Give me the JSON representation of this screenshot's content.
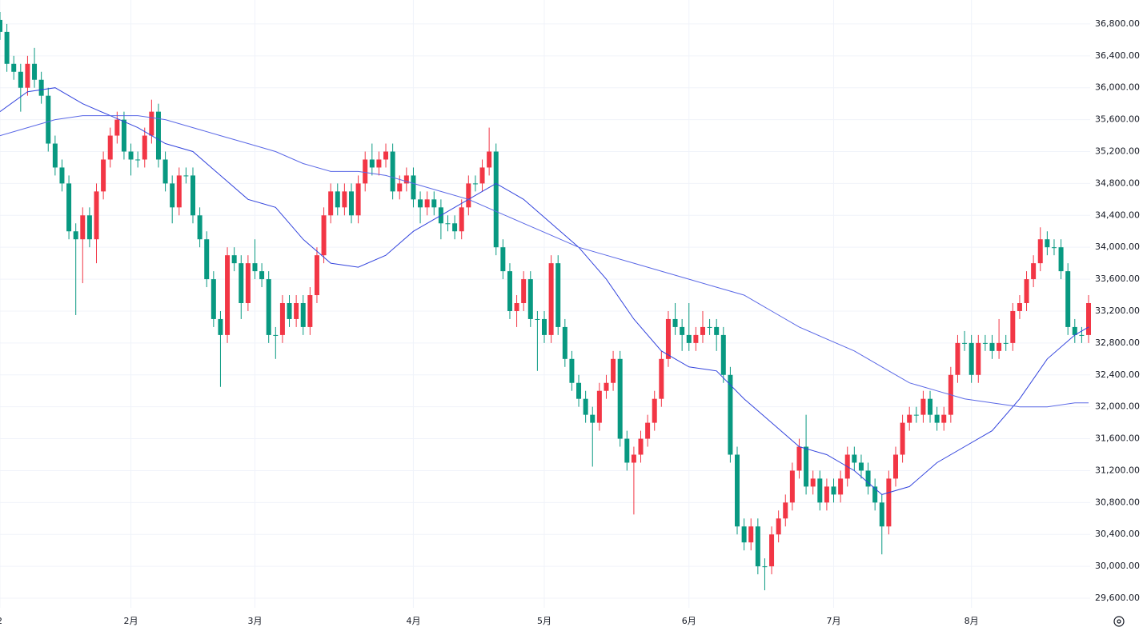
{
  "chart_data": {
    "type": "candlestick",
    "categories": [
      "2",
      null,
      null,
      null,
      null,
      null,
      null,
      null,
      null,
      null,
      null,
      null,
      null,
      null,
      null,
      null,
      null,
      null,
      null,
      "2月",
      null,
      null,
      null,
      null,
      null,
      null,
      null,
      null,
      null,
      null,
      null,
      null,
      null,
      null,
      null,
      null,
      null,
      "3月",
      null,
      null,
      null,
      null,
      null,
      null,
      null,
      null,
      null,
      null,
      null,
      null,
      null,
      null,
      null,
      null,
      null,
      null,
      null,
      null,
      null,
      null,
      "4月",
      null,
      null,
      null,
      null,
      null,
      null,
      null,
      null,
      null,
      null,
      null,
      null,
      null,
      null,
      null,
      null,
      null,
      null,
      "5月",
      null,
      null,
      null,
      null,
      null,
      null,
      null,
      null,
      null,
      null,
      null,
      null,
      null,
      null,
      null,
      null,
      null,
      null,
      null,
      null,
      "6月",
      null,
      null,
      null,
      null,
      null,
      null,
      null,
      null,
      null,
      null,
      null,
      null,
      null,
      null,
      null,
      null,
      null,
      null,
      null,
      null,
      "7月",
      null,
      null,
      null,
      null,
      null,
      null,
      null,
      null,
      null,
      null,
      null,
      null,
      null,
      null,
      null,
      null,
      null,
      null,
      null,
      "8月",
      null,
      null,
      null,
      null,
      null,
      null,
      null,
      null,
      null,
      null,
      null,
      null,
      null,
      null,
      null,
      null,
      null
    ],
    "open": [
      36850,
      36700,
      36300,
      36200,
      36000,
      36300,
      36100,
      35900,
      35300,
      35000,
      34800,
      34200,
      34100,
      34400,
      34100,
      34700,
      35100,
      35400,
      35600,
      35200,
      35100,
      35100,
      35400,
      35700,
      35100,
      34800,
      34500,
      34900,
      34900,
      34400,
      34100,
      33600,
      33100,
      32900,
      33900,
      33800,
      33300,
      33800,
      33700,
      33600,
      32900,
      32900,
      33300,
      33100,
      33300,
      33000,
      33400,
      33900,
      34400,
      34700,
      34500,
      34700,
      34400,
      34800,
      35100,
      35000,
      35100,
      35200,
      34700,
      34800,
      34900,
      34600,
      34500,
      34600,
      34500,
      34300,
      34300,
      34200,
      34500,
      34800,
      34800,
      35000,
      35200,
      34000,
      33700,
      33200,
      33300,
      33600,
      33100,
      33100,
      32900,
      33800,
      33000,
      32600,
      32300,
      32100,
      31900,
      31800,
      32200,
      32300,
      32600,
      31600,
      31300,
      31400,
      31600,
      31800,
      32100,
      32600,
      33100,
      33000,
      32900,
      32800,
      32900,
      33000,
      33000,
      32900,
      32400,
      31400,
      30500,
      30300,
      30500,
      30000,
      30000,
      30400,
      30600,
      30800,
      31200,
      31500,
      31000,
      31100,
      30800,
      31000,
      30900,
      31100,
      31400,
      31300,
      31200,
      31000,
      30800,
      30500,
      31100,
      31400,
      31800,
      31900,
      31900,
      32100,
      31900,
      31800,
      31900,
      32400,
      32800,
      32800,
      32400,
      32800,
      32800,
      32700,
      32800,
      32800,
      33200,
      33300,
      33600,
      33800,
      34100,
      34000,
      34000,
      33700,
      33000,
      32900,
      32900
    ],
    "high": [
      36950,
      36800,
      36400,
      36300,
      36400,
      36500,
      36200,
      36000,
      35400,
      35100,
      34900,
      34300,
      34500,
      34500,
      34800,
      35200,
      35500,
      35700,
      35700,
      35300,
      35200,
      35500,
      35850,
      35800,
      35200,
      34900,
      35000,
      35000,
      35000,
      34500,
      34200,
      33700,
      33200,
      34000,
      34000,
      33900,
      33900,
      34100,
      33800,
      33700,
      33000,
      33400,
      33400,
      33400,
      33400,
      33500,
      34000,
      34500,
      34800,
      34800,
      34800,
      34800,
      34900,
      35200,
      35300,
      35200,
      35300,
      35300,
      34900,
      35000,
      35000,
      34700,
      34700,
      34700,
      34600,
      34400,
      34400,
      34600,
      34900,
      34900,
      35100,
      35500,
      35300,
      34100,
      33800,
      33400,
      33700,
      33700,
      33200,
      33200,
      33900,
      33900,
      33100,
      32700,
      32400,
      32200,
      32000,
      32300,
      32400,
      32700,
      32700,
      31700,
      31500,
      31700,
      31900,
      32200,
      32700,
      33200,
      33300,
      33100,
      33300,
      33000,
      33200,
      33100,
      33100,
      33000,
      32500,
      31500,
      30600,
      30600,
      30600,
      30100,
      30500,
      30700,
      30900,
      31300,
      31600,
      31900,
      31200,
      31200,
      31100,
      31100,
      31200,
      31500,
      31500,
      31400,
      31300,
      31100,
      30900,
      31200,
      31500,
      31900,
      32000,
      32000,
      32200,
      32200,
      32000,
      32000,
      32500,
      32900,
      32950,
      32900,
      32900,
      32900,
      32900,
      33100,
      32900,
      33300,
      33400,
      33700,
      33900,
      34250,
      34200,
      34100,
      34100,
      33800,
      33100,
      33000,
      33400
    ],
    "low": [
      36600,
      36200,
      36100,
      35700,
      35900,
      36000,
      35800,
      35200,
      34900,
      34700,
      34100,
      33150,
      33550,
      34000,
      33800,
      34600,
      35000,
      35300,
      35100,
      34900,
      35000,
      35000,
      35300,
      35000,
      34700,
      34300,
      34400,
      34800,
      34300,
      34000,
      33500,
      33000,
      32250,
      32800,
      33700,
      33100,
      33200,
      33600,
      33500,
      32800,
      32600,
      32800,
      33000,
      33000,
      32900,
      32900,
      33300,
      33800,
      34300,
      34400,
      34400,
      34300,
      34300,
      34700,
      34900,
      34900,
      35000,
      34600,
      34600,
      34700,
      34500,
      34300,
      34400,
      34400,
      34100,
      34200,
      34100,
      34100,
      34400,
      34700,
      34700,
      34900,
      33900,
      33600,
      33100,
      33000,
      33200,
      33000,
      32450,
      32800,
      32800,
      32900,
      32500,
      32200,
      32000,
      31800,
      31250,
      31700,
      32100,
      32200,
      31500,
      31200,
      30650,
      31300,
      31500,
      31700,
      32000,
      32500,
      32900,
      32700,
      32700,
      32700,
      32800,
      32900,
      32700,
      32300,
      31300,
      30400,
      30200,
      30200,
      29900,
      29700,
      29900,
      30300,
      30500,
      30700,
      31100,
      30900,
      30900,
      30700,
      30700,
      30800,
      30800,
      31000,
      31200,
      31100,
      30900,
      30700,
      30150,
      30400,
      31000,
      31300,
      31700,
      31800,
      31800,
      31800,
      31700,
      31700,
      31800,
      32300,
      32700,
      32300,
      32300,
      32700,
      32600,
      32600,
      32700,
      32700,
      33100,
      33200,
      33500,
      33700,
      33900,
      33900,
      33600,
      32900,
      32800,
      32800,
      32800
    ],
    "close": [
      36700,
      36300,
      36200,
      36000,
      36300,
      36100,
      35900,
      35300,
      35000,
      34800,
      34200,
      34100,
      34400,
      34100,
      34700,
      35100,
      35400,
      35600,
      35200,
      35100,
      35100,
      35400,
      35700,
      35100,
      34800,
      34500,
      34900,
      34900,
      34400,
      34100,
      33600,
      33100,
      32900,
      33900,
      33800,
      33300,
      33800,
      33700,
      33600,
      32900,
      32900,
      33300,
      33100,
      33300,
      33000,
      33400,
      33900,
      34400,
      34700,
      34500,
      34700,
      34400,
      34800,
      35100,
      35000,
      35100,
      35200,
      34700,
      34800,
      34900,
      34600,
      34500,
      34600,
      34500,
      34300,
      34300,
      34200,
      34500,
      34800,
      34800,
      35000,
      35200,
      34000,
      33700,
      33200,
      33300,
      33600,
      33100,
      33100,
      32900,
      33800,
      33000,
      32600,
      32300,
      32100,
      31900,
      31800,
      32200,
      32300,
      32600,
      31600,
      31300,
      31400,
      31600,
      31800,
      32100,
      32600,
      33100,
      33000,
      32900,
      32800,
      32900,
      33000,
      33000,
      32900,
      32400,
      31400,
      30500,
      30300,
      30500,
      30000,
      30000,
      30400,
      30600,
      30800,
      31200,
      31500,
      31000,
      31100,
      30800,
      31000,
      30900,
      31100,
      31400,
      31300,
      31200,
      31000,
      30800,
      30500,
      31100,
      31400,
      31800,
      31900,
      31900,
      32100,
      31900,
      31800,
      31900,
      32400,
      32800,
      32800,
      32400,
      32800,
      32800,
      32700,
      32800,
      32800,
      33200,
      33300,
      33600,
      33800,
      34100,
      34000,
      34000,
      33700,
      33000,
      32900,
      32900,
      33300
    ],
    "up_color": "#f23645",
    "down_color": "#089981",
    "series": [
      {
        "color": "#3344dd",
        "x": [
          0,
          4,
          8,
          12,
          16,
          20,
          24,
          28,
          32,
          36,
          40,
          44,
          48,
          52,
          56,
          60,
          64,
          68,
          72,
          76,
          80,
          84,
          88,
          92,
          96,
          100,
          104,
          108,
          112,
          116,
          120,
          124,
          128,
          132,
          136,
          140,
          144,
          148,
          152,
          156,
          158
        ],
        "values": [
          35700,
          35950,
          36000,
          35800,
          35650,
          35500,
          35300,
          35200,
          34900,
          34600,
          34500,
          34100,
          33800,
          33750,
          33900,
          34200,
          34400,
          34600,
          34800,
          34600,
          34300,
          34000,
          33600,
          33100,
          32700,
          32500,
          32450,
          32100,
          31800,
          31500,
          31400,
          31200,
          30900,
          31000,
          31300,
          31500,
          31700,
          32100,
          32600,
          32900,
          33000
        ]
      },
      {
        "color": "#5a68e6",
        "x": [
          0,
          4,
          8,
          12,
          16,
          20,
          24,
          28,
          32,
          36,
          40,
          44,
          48,
          52,
          56,
          60,
          64,
          68,
          72,
          76,
          80,
          84,
          88,
          92,
          96,
          100,
          104,
          108,
          112,
          116,
          120,
          124,
          128,
          132,
          136,
          140,
          144,
          148,
          152,
          156,
          158
        ],
        "values": [
          35400,
          35500,
          35600,
          35650,
          35650,
          35650,
          35600,
          35500,
          35400,
          35300,
          35200,
          35050,
          34950,
          34950,
          34900,
          34800,
          34700,
          34600,
          34450,
          34300,
          34150,
          34000,
          33900,
          33800,
          33700,
          33600,
          33500,
          33400,
          33200,
          33000,
          32850,
          32700,
          32500,
          32300,
          32200,
          32100,
          32050,
          32000,
          32000,
          32050,
          32050
        ]
      }
    ],
    "ylim": [
      29480,
      37100
    ],
    "yticks": [
      {
        "value": 29600,
        "label": "29,600.00"
      },
      {
        "value": 30000,
        "label": "30,000.00"
      },
      {
        "value": 30400,
        "label": "30,400.00"
      },
      {
        "value": 30800,
        "label": "30,800.00"
      },
      {
        "value": 31200,
        "label": "31,200.00"
      },
      {
        "value": 31600,
        "label": "31,600.00"
      },
      {
        "value": 32000,
        "label": "32,000.00"
      },
      {
        "value": 32400,
        "label": "32,400.00"
      },
      {
        "value": 32800,
        "label": "32,800.00"
      },
      {
        "value": 33200,
        "label": "33,200.00"
      },
      {
        "value": 33600,
        "label": "33,600.00"
      },
      {
        "value": 34000,
        "label": "34,000.00"
      },
      {
        "value": 34400,
        "label": "34,400.00"
      },
      {
        "value": 34800,
        "label": "34,800.00"
      },
      {
        "value": 35200,
        "label": "35,200.00"
      },
      {
        "value": 35600,
        "label": "35,600.00"
      },
      {
        "value": 36000,
        "label": "36,000.00"
      },
      {
        "value": 36400,
        "label": "36,400.00"
      },
      {
        "value": 36800,
        "label": "36,800.00"
      }
    ],
    "grid": true
  }
}
